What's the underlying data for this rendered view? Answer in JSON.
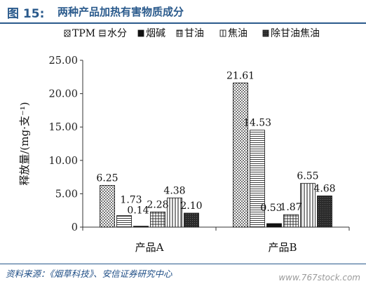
{
  "header": {
    "figure_label": "图 15:",
    "figure_title": "两种产品加热有害物质成分"
  },
  "footer": {
    "source": "资料来源：《烟草科技》、安信证券研究中心",
    "watermark": "www.767stock.com"
  },
  "chart_data": {
    "type": "bar",
    "title": "",
    "ylabel": "释放量/(mg·支⁻¹)",
    "xlabel": "",
    "ylim": [
      0,
      25
    ],
    "yticks": [
      "0",
      "5.00",
      "10.00",
      "15.00",
      "20.00",
      "25.00"
    ],
    "ytick_values": [
      0,
      5,
      10,
      15,
      20,
      25
    ],
    "categories": [
      "产品A",
      "产品B"
    ],
    "legend_position": "top",
    "series": [
      {
        "name": "TPM",
        "values": [
          6.25,
          21.61
        ],
        "labels": [
          "6.25",
          "21.61"
        ],
        "pattern": "dots"
      },
      {
        "name": "水分",
        "values": [
          1.73,
          14.53
        ],
        "labels": [
          "1.73",
          "14.53"
        ],
        "pattern": "hlines"
      },
      {
        "name": "烟碱",
        "values": [
          0.14,
          0.53
        ],
        "labels": [
          "0.14",
          "0.53"
        ],
        "pattern": "solid"
      },
      {
        "name": "甘油",
        "values": [
          2.28,
          1.87
        ],
        "labels": [
          "2.28",
          "1.87"
        ],
        "pattern": "grid"
      },
      {
        "name": "焦油",
        "values": [
          4.38,
          6.55
        ],
        "labels": [
          "4.38",
          "6.55"
        ],
        "pattern": "vlines"
      },
      {
        "name": "除甘油焦油",
        "values": [
          2.1,
          4.68
        ],
        "labels": [
          "2.10",
          "4.68"
        ],
        "pattern": "dense"
      }
    ]
  }
}
